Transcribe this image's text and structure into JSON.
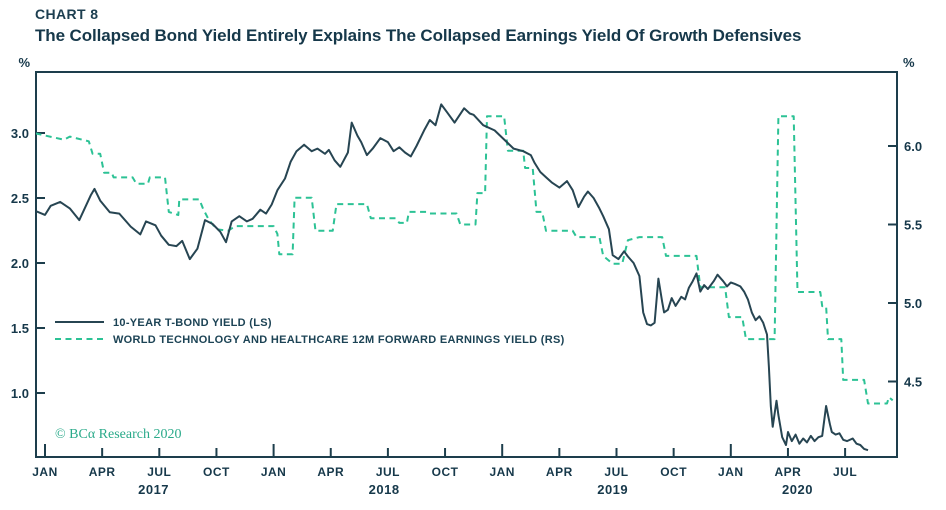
{
  "header": {
    "kicker": "CHART 8",
    "title": "The Collapsed Bond Yield Entirely Explains The Collapsed Earnings Yield Of Growth Defensives"
  },
  "credit": "© BCα Research 2020",
  "colors": {
    "bond_line": "#274552",
    "earnings_line": "#2cc295",
    "frame": "#1d3e4c",
    "text": "#16384a",
    "credit": "#2aaa8a"
  },
  "chart_data": {
    "type": "line",
    "title": "The Collapsed Bond Yield Entirely Explains The Collapsed Earnings Yield Of Growth Defensives",
    "x_unit": "months since Jan 2017",
    "left_axis": {
      "label": "%",
      "tick_values": [
        1.0,
        1.5,
        2.0,
        2.5,
        3.0
      ],
      "tick_labels": [
        "1.0",
        "1.5",
        "2.0",
        "2.5",
        "3.0"
      ],
      "range": [
        0.51,
        3.47
      ]
    },
    "right_axis": {
      "label": "%",
      "tick_values": [
        4.5,
        5.0,
        5.5,
        6.0
      ],
      "tick_labels": [
        "4.5",
        "5.0",
        "5.5",
        "6.0"
      ],
      "range": [
        4.02,
        6.48
      ]
    },
    "x_ticks": [
      {
        "m": 0,
        "label": "JAN",
        "major": true
      },
      {
        "m": 3,
        "label": "APR",
        "major": false
      },
      {
        "m": 6,
        "label": "JUL",
        "major": false
      },
      {
        "m": 9,
        "label": "OCT",
        "major": false
      },
      {
        "m": 12,
        "label": "JAN",
        "major": true
      },
      {
        "m": 15,
        "label": "APR",
        "major": false
      },
      {
        "m": 18,
        "label": "JUL",
        "major": false
      },
      {
        "m": 21,
        "label": "OCT",
        "major": false
      },
      {
        "m": 24,
        "label": "JAN",
        "major": true
      },
      {
        "m": 27,
        "label": "APR",
        "major": false
      },
      {
        "m": 30,
        "label": "JUL",
        "major": false
      },
      {
        "m": 33,
        "label": "OCT",
        "major": false
      },
      {
        "m": 36,
        "label": "JAN",
        "major": true
      },
      {
        "m": 39,
        "label": "APR",
        "major": false
      },
      {
        "m": 42,
        "label": "JUL",
        "major": false
      }
    ],
    "year_labels": [
      {
        "m": 5.7,
        "label": "2017"
      },
      {
        "m": 17.8,
        "label": "2018"
      },
      {
        "m": 29.8,
        "label": "2019"
      },
      {
        "m": 39.5,
        "label": "2020"
      }
    ],
    "legend_position": "inside-left-middle",
    "grid": false,
    "series": [
      {
        "name": "10-YEAR T-BOND YIELD (LS)",
        "axis": "left",
        "style": "solid",
        "points": [
          [
            -0.5,
            2.4
          ],
          [
            0,
            2.37
          ],
          [
            0.3,
            2.44
          ],
          [
            0.8,
            2.47
          ],
          [
            1.3,
            2.42
          ],
          [
            1.8,
            2.33
          ],
          [
            2.4,
            2.52
          ],
          [
            2.6,
            2.57
          ],
          [
            2.9,
            2.48
          ],
          [
            3.4,
            2.39
          ],
          [
            3.9,
            2.38
          ],
          [
            4.5,
            2.28
          ],
          [
            5.0,
            2.22
          ],
          [
            5.3,
            2.32
          ],
          [
            5.8,
            2.29
          ],
          [
            6.1,
            2.21
          ],
          [
            6.5,
            2.14
          ],
          [
            6.9,
            2.13
          ],
          [
            7.2,
            2.17
          ],
          [
            7.6,
            2.03
          ],
          [
            8.0,
            2.11
          ],
          [
            8.4,
            2.33
          ],
          [
            8.8,
            2.3
          ],
          [
            9.2,
            2.24
          ],
          [
            9.5,
            2.16
          ],
          [
            9.8,
            2.32
          ],
          [
            10.2,
            2.36
          ],
          [
            10.6,
            2.32
          ],
          [
            10.9,
            2.34
          ],
          [
            11.3,
            2.41
          ],
          [
            11.6,
            2.38
          ],
          [
            11.9,
            2.45
          ],
          [
            12.2,
            2.56
          ],
          [
            12.6,
            2.65
          ],
          [
            12.9,
            2.78
          ],
          [
            13.2,
            2.86
          ],
          [
            13.6,
            2.91
          ],
          [
            14.0,
            2.86
          ],
          [
            14.3,
            2.88
          ],
          [
            14.7,
            2.84
          ],
          [
            14.9,
            2.87
          ],
          [
            15.2,
            2.79
          ],
          [
            15.5,
            2.74
          ],
          [
            15.9,
            2.85
          ],
          [
            16.1,
            3.08
          ],
          [
            16.4,
            2.98
          ],
          [
            16.6,
            2.93
          ],
          [
            16.9,
            2.83
          ],
          [
            17.2,
            2.88
          ],
          [
            17.6,
            2.96
          ],
          [
            18.0,
            2.93
          ],
          [
            18.3,
            2.86
          ],
          [
            18.6,
            2.89
          ],
          [
            18.9,
            2.85
          ],
          [
            19.2,
            2.82
          ],
          [
            19.5,
            2.9
          ],
          [
            19.9,
            3.02
          ],
          [
            20.2,
            3.1
          ],
          [
            20.5,
            3.06
          ],
          [
            20.8,
            3.22
          ],
          [
            21.1,
            3.16
          ],
          [
            21.5,
            3.08
          ],
          [
            22.0,
            3.19
          ],
          [
            22.3,
            3.15
          ],
          [
            22.5,
            3.14
          ],
          [
            23.0,
            3.06
          ],
          [
            23.6,
            3.02
          ],
          [
            24.1,
            2.95
          ],
          [
            24.6,
            2.88
          ],
          [
            25.1,
            2.86
          ],
          [
            25.5,
            2.83
          ],
          [
            25.7,
            2.77
          ],
          [
            26.0,
            2.7
          ],
          [
            26.3,
            2.66
          ],
          [
            26.6,
            2.62
          ],
          [
            27.0,
            2.58
          ],
          [
            27.4,
            2.63
          ],
          [
            27.7,
            2.56
          ],
          [
            28.0,
            2.43
          ],
          [
            28.3,
            2.51
          ],
          [
            28.5,
            2.55
          ],
          [
            28.8,
            2.5
          ],
          [
            29.1,
            2.42
          ],
          [
            29.3,
            2.36
          ],
          [
            29.6,
            2.26
          ],
          [
            29.8,
            2.06
          ],
          [
            30.1,
            2.03
          ],
          [
            30.4,
            2.09
          ],
          [
            30.6,
            2.05
          ],
          [
            30.9,
            2.0
          ],
          [
            31.2,
            1.9
          ],
          [
            31.4,
            1.62
          ],
          [
            31.6,
            1.53
          ],
          [
            31.8,
            1.52
          ],
          [
            32.0,
            1.54
          ],
          [
            32.2,
            1.88
          ],
          [
            32.4,
            1.7
          ],
          [
            32.5,
            1.62
          ],
          [
            32.7,
            1.64
          ],
          [
            32.9,
            1.73
          ],
          [
            33.1,
            1.67
          ],
          [
            33.4,
            1.74
          ],
          [
            33.6,
            1.72
          ],
          [
            33.8,
            1.81
          ],
          [
            34.0,
            1.86
          ],
          [
            34.2,
            1.92
          ],
          [
            34.4,
            1.78
          ],
          [
            34.6,
            1.83
          ],
          [
            34.8,
            1.8
          ],
          [
            35.1,
            1.86
          ],
          [
            35.3,
            1.91
          ],
          [
            35.6,
            1.86
          ],
          [
            35.8,
            1.82
          ],
          [
            36.0,
            1.85
          ],
          [
            36.2,
            1.84
          ],
          [
            36.5,
            1.82
          ],
          [
            36.7,
            1.78
          ],
          [
            36.9,
            1.72
          ],
          [
            37.1,
            1.62
          ],
          [
            37.3,
            1.56
          ],
          [
            37.5,
            1.59
          ],
          [
            37.7,
            1.54
          ],
          [
            37.9,
            1.45
          ],
          [
            38.0,
            1.2
          ],
          [
            38.1,
            0.9
          ],
          [
            38.2,
            0.74
          ],
          [
            38.4,
            0.94
          ],
          [
            38.5,
            0.83
          ],
          [
            38.7,
            0.66
          ],
          [
            38.9,
            0.6
          ],
          [
            39.0,
            0.7
          ],
          [
            39.2,
            0.63
          ],
          [
            39.4,
            0.68
          ],
          [
            39.6,
            0.61
          ],
          [
            39.8,
            0.65
          ],
          [
            40.0,
            0.62
          ],
          [
            40.2,
            0.67
          ],
          [
            40.4,
            0.63
          ],
          [
            40.6,
            0.66
          ],
          [
            40.8,
            0.67
          ],
          [
            41.0,
            0.9
          ],
          [
            41.2,
            0.76
          ],
          [
            41.3,
            0.7
          ],
          [
            41.5,
            0.68
          ],
          [
            41.7,
            0.69
          ],
          [
            41.9,
            0.64
          ],
          [
            42.1,
            0.63
          ],
          [
            42.4,
            0.65
          ],
          [
            42.6,
            0.61
          ],
          [
            42.8,
            0.6
          ],
          [
            43.0,
            0.57
          ],
          [
            43.2,
            0.56
          ]
        ]
      },
      {
        "name": "WORLD TECHNOLOGY AND HEALTHCARE 12M FORWARD EARNINGS YIELD (RS)",
        "axis": "right",
        "style": "dashed",
        "points": [
          [
            -0.5,
            6.08
          ],
          [
            1.0,
            6.04
          ],
          [
            1.3,
            6.06
          ],
          [
            2.3,
            6.03
          ],
          [
            2.5,
            5.95
          ],
          [
            2.9,
            5.95
          ],
          [
            3.1,
            5.83
          ],
          [
            3.5,
            5.83
          ],
          [
            3.6,
            5.8
          ],
          [
            4.6,
            5.8
          ],
          [
            4.8,
            5.76
          ],
          [
            5.4,
            5.76
          ],
          [
            5.5,
            5.8
          ],
          [
            6.3,
            5.8
          ],
          [
            6.5,
            5.58
          ],
          [
            7.0,
            5.56
          ],
          [
            7.05,
            5.66
          ],
          [
            8.1,
            5.66
          ],
          [
            8.3,
            5.6
          ],
          [
            8.6,
            5.53
          ],
          [
            9.0,
            5.47
          ],
          [
            9.6,
            5.46
          ],
          [
            10.0,
            5.49
          ],
          [
            12.0,
            5.49
          ],
          [
            12.2,
            5.44
          ],
          [
            12.3,
            5.31
          ],
          [
            13.0,
            5.31
          ],
          [
            13.1,
            5.67
          ],
          [
            14.0,
            5.67
          ],
          [
            14.2,
            5.46
          ],
          [
            15.1,
            5.46
          ],
          [
            15.3,
            5.63
          ],
          [
            16.9,
            5.63
          ],
          [
            17.1,
            5.54
          ],
          [
            18.4,
            5.54
          ],
          [
            18.6,
            5.51
          ],
          [
            19.0,
            5.51
          ],
          [
            19.1,
            5.58
          ],
          [
            20.1,
            5.58
          ],
          [
            20.2,
            5.57
          ],
          [
            21.6,
            5.57
          ],
          [
            21.8,
            5.5
          ],
          [
            22.6,
            5.5
          ],
          [
            22.7,
            5.7
          ],
          [
            23.1,
            5.7
          ],
          [
            23.2,
            6.19
          ],
          [
            24.1,
            6.19
          ],
          [
            24.3,
            5.97
          ],
          [
            25.1,
            5.97
          ],
          [
            25.2,
            5.86
          ],
          [
            25.6,
            5.86
          ],
          [
            25.8,
            5.58
          ],
          [
            26.1,
            5.58
          ],
          [
            26.3,
            5.46
          ],
          [
            27.7,
            5.46
          ],
          [
            27.9,
            5.42
          ],
          [
            29.1,
            5.42
          ],
          [
            29.3,
            5.3
          ],
          [
            29.8,
            5.25
          ],
          [
            30.3,
            5.25
          ],
          [
            30.6,
            5.4
          ],
          [
            31.2,
            5.42
          ],
          [
            32.4,
            5.42
          ],
          [
            32.6,
            5.3
          ],
          [
            34.2,
            5.3
          ],
          [
            34.4,
            5.1
          ],
          [
            35.7,
            5.1
          ],
          [
            35.9,
            4.91
          ],
          [
            36.6,
            4.91
          ],
          [
            36.8,
            4.77
          ],
          [
            38.3,
            4.77
          ],
          [
            38.5,
            6.19
          ],
          [
            39.3,
            6.19
          ],
          [
            39.5,
            5.07
          ],
          [
            40.7,
            5.07
          ],
          [
            40.8,
            4.98
          ],
          [
            41.0,
            4.98
          ],
          [
            41.1,
            4.77
          ],
          [
            41.8,
            4.77
          ],
          [
            41.9,
            4.51
          ],
          [
            43.0,
            4.51
          ],
          [
            43.2,
            4.36
          ],
          [
            44.2,
            4.36
          ],
          [
            44.3,
            4.4
          ],
          [
            44.5,
            4.38
          ]
        ]
      }
    ]
  }
}
